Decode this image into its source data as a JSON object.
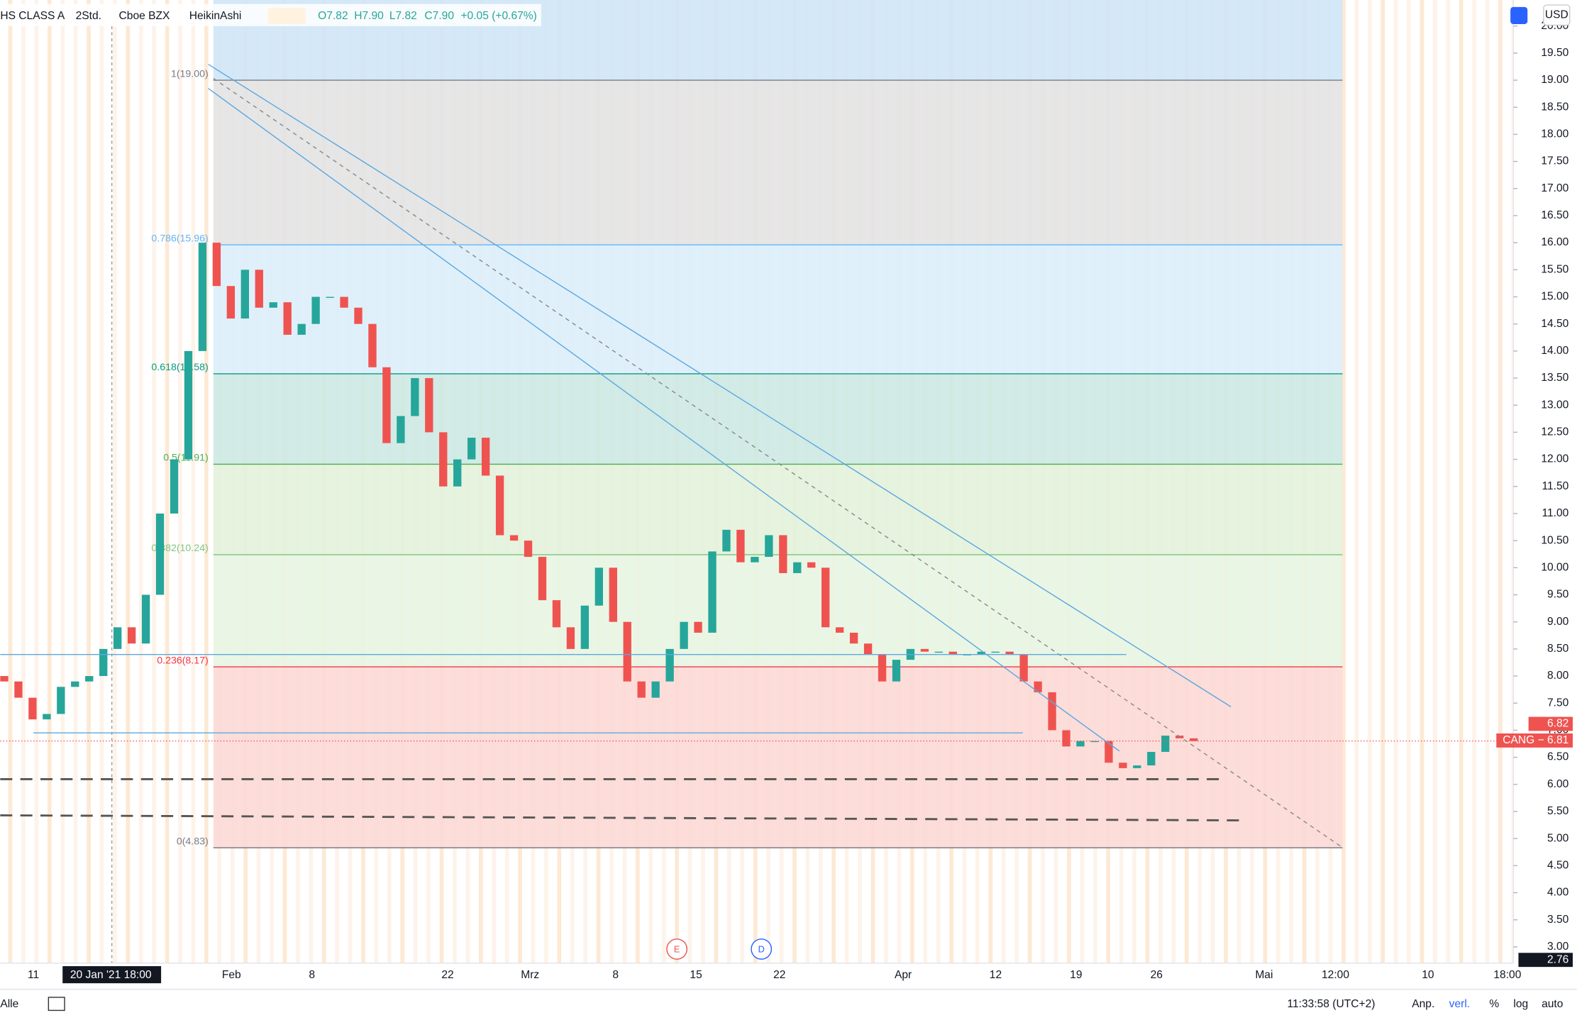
{
  "header": {
    "symbol": "HS CLASS A",
    "interval": "2Std.",
    "exchange": "Cboe BZX",
    "style": "HeikinAshi",
    "open": "O7.82",
    "high": "H7.90",
    "low": "L7.82",
    "close": "C7.90",
    "change": "+0.05 (+0.67%)"
  },
  "chart": {
    "type": "candlestick",
    "ylim": [
      2.7,
      20.48
    ],
    "yticks": [
      {
        "value": 3,
        "label": "3.00"
      },
      {
        "value": 3.5,
        "label": "3.50"
      },
      {
        "value": 4,
        "label": "4.00"
      },
      {
        "value": 4.5,
        "label": "4.50"
      },
      {
        "value": 5,
        "label": "5.00"
      },
      {
        "value": 5.5,
        "label": "5.50"
      },
      {
        "value": 6,
        "label": "6.00"
      },
      {
        "value": 6.5,
        "label": "6.50"
      },
      {
        "value": 7,
        "label": "7.00"
      },
      {
        "value": 7.5,
        "label": "7.50"
      },
      {
        "value": 8,
        "label": "8.00"
      },
      {
        "value": 8.5,
        "label": "8.50"
      },
      {
        "value": 9,
        "label": "9.00"
      },
      {
        "value": 9.5,
        "label": "9.50"
      },
      {
        "value": 10,
        "label": "10.00"
      },
      {
        "value": 10.5,
        "label": "10.50"
      },
      {
        "value": 11,
        "label": "11.00"
      },
      {
        "value": 11.5,
        "label": "11.50"
      },
      {
        "value": 12,
        "label": "12.00"
      },
      {
        "value": 12.5,
        "label": "12.50"
      },
      {
        "value": 13,
        "label": "13.00"
      },
      {
        "value": 13.5,
        "label": "13.50"
      },
      {
        "value": 14,
        "label": "14.00"
      },
      {
        "value": 14.5,
        "label": "14.50"
      },
      {
        "value": 15,
        "label": "15.00"
      },
      {
        "value": 15.5,
        "label": "15.50"
      },
      {
        "value": 16,
        "label": "16.00"
      },
      {
        "value": 16.5,
        "label": "16.50"
      },
      {
        "value": 17,
        "label": "17.00"
      },
      {
        "value": 17.5,
        "label": "17.50"
      },
      {
        "value": 18,
        "label": "18.00"
      },
      {
        "value": 18.5,
        "label": "18.50"
      },
      {
        "value": 19,
        "label": "19.00"
      },
      {
        "value": 19.5,
        "label": "19.50"
      },
      {
        "value": 20,
        "label": "20.00"
      }
    ],
    "open": [
      8.0,
      7.9,
      7.6,
      7.2,
      7.3,
      7.8,
      7.9,
      8.0,
      8.5,
      8.9,
      8.6,
      9.5,
      11.0,
      12.0,
      14.0,
      16.0,
      15.2,
      14.6,
      15.5,
      14.8,
      14.9,
      14.3,
      14.5,
      15.0,
      15.0,
      14.8,
      14.5,
      13.7,
      12.3,
      12.8,
      13.5,
      12.5,
      11.5,
      12.0,
      12.4,
      11.7,
      10.6,
      10.5,
      10.2,
      9.4,
      8.9,
      8.5,
      9.3,
      10.0,
      9.0,
      7.9,
      7.6,
      7.9,
      8.5,
      9.0,
      8.8,
      10.3,
      10.7,
      10.1,
      10.2,
      10.6,
      9.9,
      10.1,
      10.0,
      8.9,
      8.8,
      8.6,
      8.4,
      7.9,
      8.3,
      8.5,
      8.45,
      8.45,
      8.4,
      8.4,
      8.45,
      8.45,
      8.4,
      7.9,
      7.7,
      7.0,
      6.7,
      6.8,
      6.8,
      6.4,
      6.3,
      6.35,
      6.6,
      6.9,
      6.85
    ],
    "close": [
      7.9,
      7.6,
      7.2,
      7.3,
      7.8,
      7.9,
      8.0,
      8.5,
      8.9,
      8.6,
      9.5,
      11.0,
      12.0,
      14.0,
      16.0,
      15.2,
      14.6,
      15.5,
      14.8,
      14.9,
      14.3,
      14.5,
      15.0,
      15.0,
      14.8,
      14.5,
      13.7,
      12.3,
      12.8,
      13.5,
      12.5,
      11.5,
      12.0,
      12.4,
      11.7,
      10.6,
      10.5,
      10.2,
      9.4,
      8.9,
      8.5,
      9.3,
      10.0,
      9.0,
      7.9,
      7.6,
      7.9,
      8.5,
      9.0,
      8.8,
      10.3,
      10.7,
      10.1,
      10.2,
      10.6,
      9.9,
      10.1,
      10.0,
      8.9,
      8.8,
      8.6,
      8.4,
      7.9,
      8.3,
      8.5,
      8.45,
      8.45,
      8.4,
      8.4,
      8.45,
      8.45,
      8.4,
      7.9,
      7.7,
      7.0,
      6.7,
      6.8,
      6.8,
      6.4,
      6.3,
      6.35,
      6.6,
      6.9,
      6.85,
      6.8
    ],
    "up_color": "#26a69a",
    "down_color": "#ef5350",
    "fib": [
      {
        "value": 19.0,
        "label": "1(19.00)",
        "color": "#787b86"
      },
      {
        "value": 15.96,
        "label": "0.786(15.96)",
        "color": "#64b5f6"
      },
      {
        "value": 13.58,
        "label": "0.618(13.58)",
        "color": "#089981"
      },
      {
        "value": 11.91,
        "label": "0.5(11.91)",
        "color": "#4caf50"
      },
      {
        "value": 10.24,
        "label": "0.382(10.24)",
        "color": "#81c784"
      },
      {
        "value": 8.17,
        "label": "0.236(8.17)",
        "color": "#f23645"
      },
      {
        "value": 4.83,
        "label": "0(4.83)",
        "color": "#787b86"
      }
    ],
    "price_tags": [
      {
        "value": 6.82,
        "label": "6.82"
      },
      {
        "value": 6.81,
        "label": "CANG − 6.81"
      },
      {
        "value": 2.76,
        "label": "2.76"
      }
    ],
    "currency": "USD",
    "time_labels": [
      "11",
      "20 Jan '21  18:00",
      "Feb",
      "8",
      "22",
      "Mrz",
      "8",
      "15",
      "22",
      "Apr",
      "12",
      "19",
      "26",
      "Mai",
      "12:00",
      "10",
      "18:00"
    ],
    "events": [
      "E",
      "D"
    ]
  },
  "footer": {
    "range": "Alle",
    "clock": "11:33:58 (UTC+2)",
    "buttons": [
      "Anp.",
      "verl.",
      "%",
      "log",
      "auto"
    ]
  }
}
